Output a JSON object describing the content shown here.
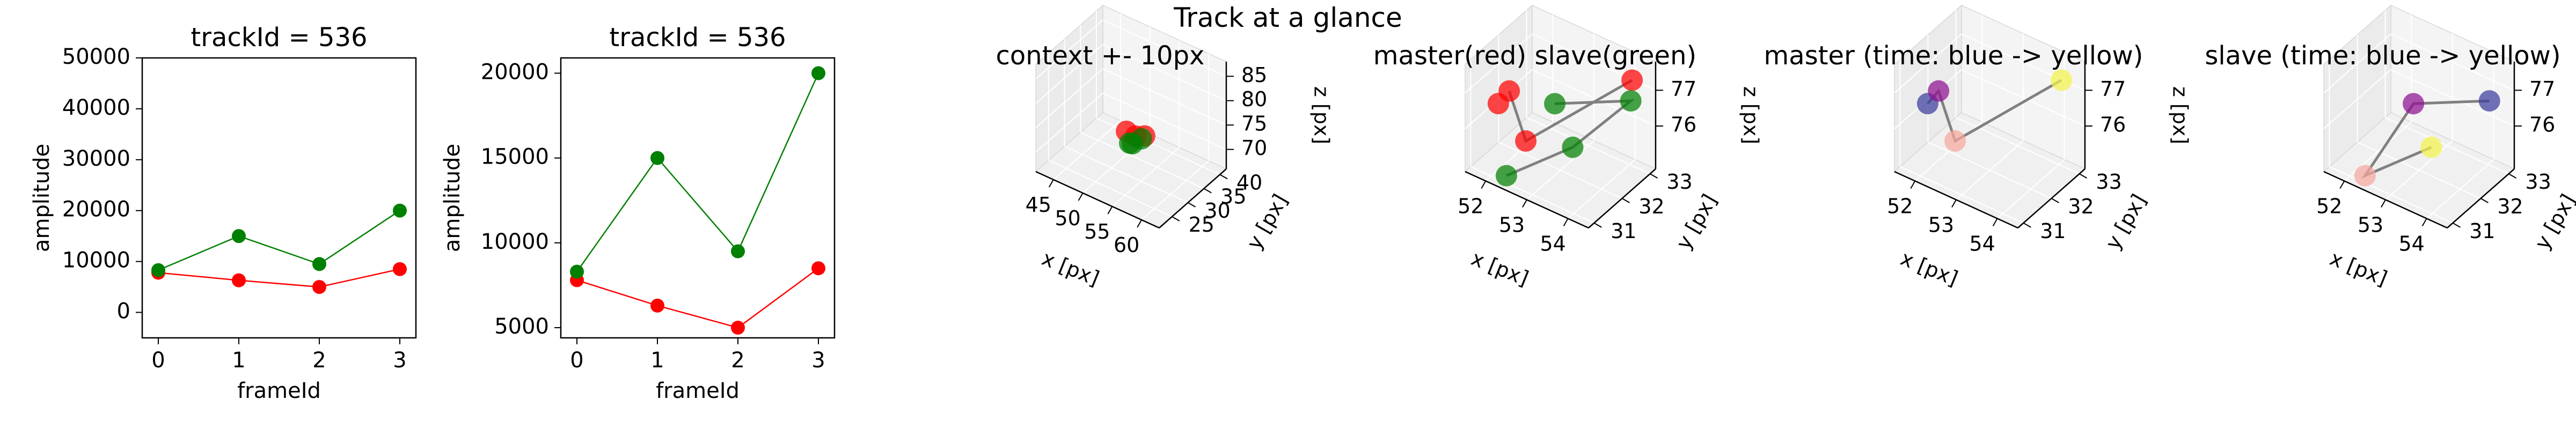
{
  "figure": {
    "suptitle": "Track at a glance"
  },
  "chart_data": [
    {
      "type": "line",
      "title": "trackId = 536",
      "xlabel": "frameId",
      "ylabel": "amplitude",
      "xlim": [
        -0.2,
        3.2
      ],
      "ylim": [
        -5000,
        50000
      ],
      "xticks": [
        "0",
        "1",
        "2",
        "3"
      ],
      "yticks": [
        "0",
        "10000",
        "20000",
        "30000",
        "40000",
        "50000"
      ],
      "x": [
        0,
        1,
        2,
        3
      ],
      "series": [
        {
          "color": "#ff0000",
          "values": [
            7800,
            6300,
            5000,
            8500
          ]
        },
        {
          "color": "#008000",
          "values": [
            8300,
            15000,
            9500,
            20000
          ]
        }
      ]
    },
    {
      "type": "line",
      "title": "trackId = 536",
      "xlabel": "frameId",
      "ylabel": "amplitude",
      "xlim": [
        -0.2,
        3.2
      ],
      "ylim": [
        4400,
        20900
      ],
      "xticks": [
        "0",
        "1",
        "2",
        "3"
      ],
      "yticks": [
        "5000",
        "10000",
        "15000",
        "20000"
      ],
      "x": [
        0,
        1,
        2,
        3
      ],
      "series": [
        {
          "color": "#ff0000",
          "values": [
            7800,
            6300,
            5000,
            8500
          ]
        },
        {
          "color": "#008000",
          "values": [
            8300,
            15000,
            9500,
            20000
          ]
        }
      ]
    },
    {
      "type": "scatter",
      "projection": "3d",
      "title": "context +- 10px",
      "xlabel": "x [px]",
      "ylabel": "y [px]",
      "zlabel": "z [px]",
      "xlim": [
        42,
        63
      ],
      "ylim": [
        21,
        42
      ],
      "zlim": [
        66,
        88
      ],
      "xticks": [
        45,
        50,
        55,
        60
      ],
      "yticks": [
        25,
        30,
        35,
        40
      ],
      "zticks": [
        70,
        75,
        80,
        85
      ],
      "points": [
        {
          "x": 52,
          "y": 31,
          "z": 74,
          "color": "#ff0000"
        },
        {
          "x": 54,
          "y": 33,
          "z": 73,
          "color": "#ff0000"
        },
        {
          "x": 53,
          "y": 32,
          "z": 73,
          "color": "#ff0000"
        },
        {
          "x": 53,
          "y": 31,
          "z": 72,
          "color": "#008000"
        },
        {
          "x": 54,
          "y": 32,
          "z": 73,
          "color": "#008000"
        },
        {
          "x": 52,
          "y": 32,
          "z": 71,
          "color": "#008000"
        }
      ]
    },
    {
      "type": "scatter",
      "projection": "3d",
      "title": "master(red) slave(green)",
      "xlabel": "x [px]",
      "ylabel": "y [px]",
      "zlabel": "z [px]",
      "xlim": [
        51.5,
        54.5
      ],
      "ylim": [
        30.8,
        33.2
      ],
      "zlim": [
        74.8,
        77.8
      ],
      "xticks": [
        52,
        53,
        54
      ],
      "yticks": [
        31,
        32,
        33
      ],
      "zticks": [
        76,
        77
      ],
      "points": [
        {
          "x": 52.3,
          "y": 31.2,
          "z": 77.2,
          "color": "#ff0000"
        },
        {
          "x": 51.9,
          "y": 31.4,
          "z": 76.5,
          "color": "#ff0000"
        },
        {
          "x": 52.5,
          "y": 31.5,
          "z": 75.7,
          "color": "#ff0000"
        },
        {
          "x": 54.2,
          "y": 32.8,
          "z": 77.4,
          "color": "#ff0000"
        },
        {
          "x": 53.0,
          "y": 31.8,
          "z": 76.8,
          "color": "#008000"
        },
        {
          "x": 53.3,
          "y": 32.0,
          "z": 75.6,
          "color": "#008000"
        },
        {
          "x": 54.1,
          "y": 32.9,
          "z": 76.7,
          "color": "#008000"
        },
        {
          "x": 52.3,
          "y": 31.1,
          "z": 74.9,
          "color": "#008000"
        }
      ],
      "paths": [
        {
          "color": "#808080",
          "points": [
            [
              52.3,
              31.2,
              77.2
            ],
            [
              52.5,
              31.5,
              75.7
            ],
            [
              54.2,
              32.8,
              77.4
            ]
          ]
        },
        {
          "color": "#808080",
          "points": [
            [
              53.0,
              31.8,
              76.8
            ],
            [
              54.1,
              32.9,
              76.7
            ],
            [
              53.3,
              32.0,
              75.6
            ],
            [
              52.3,
              31.1,
              74.9
            ]
          ]
        }
      ]
    },
    {
      "type": "scatter",
      "projection": "3d",
      "title": "master (time: blue -> yellow)",
      "xlabel": "x [px]",
      "ylabel": "y [px]",
      "zlabel": "z [px]",
      "xlim": [
        51.5,
        54.5
      ],
      "ylim": [
        30.8,
        33.2
      ],
      "zlim": [
        74.8,
        77.8
      ],
      "xticks": [
        52,
        53,
        54
      ],
      "yticks": [
        31,
        32,
        33
      ],
      "zticks": [
        76,
        77
      ],
      "points": [
        {
          "x": 51.9,
          "y": 31.4,
          "z": 76.5,
          "color": "#3b3b9c"
        },
        {
          "x": 52.3,
          "y": 31.2,
          "z": 77.2,
          "color": "#8e1090"
        },
        {
          "x": 52.5,
          "y": 31.5,
          "z": 75.7,
          "color": "#f5a89c"
        },
        {
          "x": 54.2,
          "y": 32.8,
          "z": 77.4,
          "color": "#f4f24a"
        }
      ],
      "paths": [
        {
          "color": "#808080",
          "points": [
            [
              51.9,
              31.4,
              76.5
            ],
            [
              52.3,
              31.2,
              77.2
            ],
            [
              52.5,
              31.5,
              75.7
            ],
            [
              54.2,
              32.8,
              77.4
            ]
          ]
        }
      ]
    },
    {
      "type": "scatter",
      "projection": "3d",
      "title": "slave (time: blue -> yellow)",
      "xlabel": "x [px]",
      "ylabel": "y [px]",
      "zlabel": "z [px]",
      "xlim": [
        51.5,
        54.5
      ],
      "ylim": [
        30.8,
        33.2
      ],
      "zlim": [
        74.8,
        77.8
      ],
      "xticks": [
        52,
        53,
        54
      ],
      "yticks": [
        31,
        32,
        33
      ],
      "zticks": [
        76,
        77
      ],
      "points": [
        {
          "x": 54.1,
          "y": 32.9,
          "z": 76.7,
          "color": "#3b3b9c"
        },
        {
          "x": 53.0,
          "y": 31.8,
          "z": 76.8,
          "color": "#8e1090"
        },
        {
          "x": 52.3,
          "y": 31.1,
          "z": 74.9,
          "color": "#f5a89c"
        },
        {
          "x": 53.3,
          "y": 32.0,
          "z": 75.6,
          "color": "#f4f24a"
        }
      ],
      "paths": [
        {
          "color": "#808080",
          "points": [
            [
              54.1,
              32.9,
              76.7
            ],
            [
              53.0,
              31.8,
              76.8
            ],
            [
              52.3,
              31.1,
              74.9
            ],
            [
              53.3,
              32.0,
              75.6
            ]
          ]
        }
      ]
    }
  ]
}
